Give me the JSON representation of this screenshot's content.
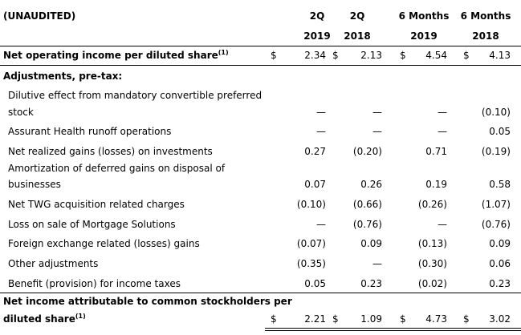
{
  "header": {
    "unaudited": "(UNAUDITED)",
    "columns": [
      {
        "line1": "2Q",
        "line2": "2019"
      },
      {
        "line1": "2Q",
        "line2": "2018"
      },
      {
        "line1": "6 Months",
        "line2": "2019"
      },
      {
        "line1": "6 Months",
        "line2": "2018"
      }
    ]
  },
  "currency": "$",
  "rows": {
    "net_op": {
      "label": "Net operating income per diluted share",
      "footnote": "(1)",
      "values": [
        "2.34",
        "2.13",
        "4.54",
        "4.13"
      ]
    },
    "adjustments_label": "Adjustments, pre-tax:",
    "dilutive": {
      "label1": "Dilutive effect from mandatory convertible preferred",
      "label2": "stock",
      "values": [
        "—",
        "—",
        "—",
        "(0.10)"
      ]
    },
    "assurant": {
      "label": "Assurant Health runoff operations",
      "values": [
        "—",
        "—",
        "—",
        "0.05"
      ]
    },
    "realized": {
      "label": "Net realized gains (losses) on investments",
      "values": [
        "0.27",
        "(0.20)",
        "0.71",
        "(0.19)"
      ]
    },
    "amortization": {
      "label1": "Amortization of deferred gains on disposal of",
      "label2": "businesses",
      "values": [
        "0.07",
        "0.26",
        "0.19",
        "0.58"
      ]
    },
    "twg": {
      "label": "Net TWG acquisition related charges",
      "values": [
        "(0.10)",
        "(0.66)",
        "(0.26)",
        "(1.07)"
      ]
    },
    "mortgage": {
      "label": "Loss on sale of Mortgage Solutions",
      "values": [
        "—",
        "(0.76)",
        "—",
        "(0.76)"
      ]
    },
    "fx": {
      "label": "Foreign exchange related (losses) gains",
      "values": [
        "(0.07)",
        "0.09",
        "(0.13)",
        "0.09"
      ]
    },
    "other": {
      "label": "Other adjustments",
      "values": [
        "(0.35)",
        "—",
        "(0.30)",
        "0.06"
      ]
    },
    "tax": {
      "label": "Benefit (provision) for income taxes",
      "values": [
        "0.05",
        "0.23",
        "(0.02)",
        "0.23"
      ]
    },
    "net_income": {
      "label1": "Net income attributable to common stockholders per",
      "label2": "diluted share",
      "footnote": "(1)",
      "values": [
        "2.21",
        "1.09",
        "4.73",
        "3.02"
      ]
    }
  }
}
